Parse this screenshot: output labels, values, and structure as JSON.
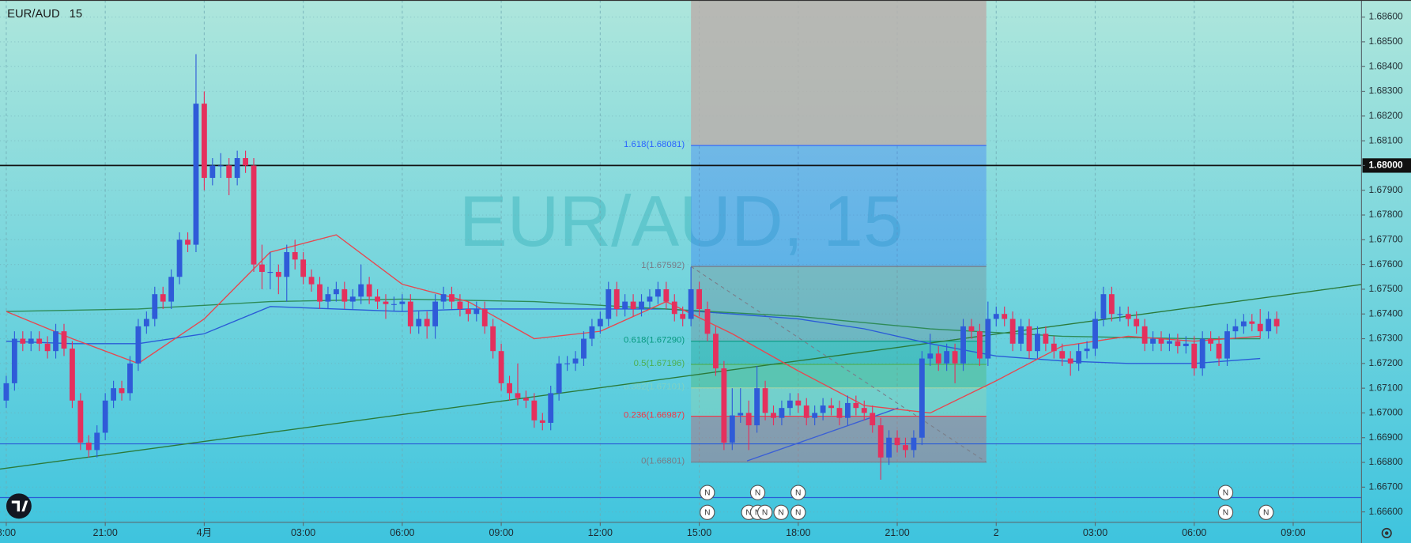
{
  "chart_data": {
    "type": "candlestick",
    "title": "EUR/AUD",
    "interval": "15",
    "watermark": "EUR/AUD, 15",
    "event_marker_label": "N",
    "up_color": "#2f5bd8",
    "down_color": "#e4305d",
    "grid": true,
    "xlim": [
      -0.19,
      41.07
    ],
    "ylim": [
      1.66558,
      1.68669
    ],
    "xticks": [
      {
        "value": 0,
        "label": "8:00"
      },
      {
        "value": 3,
        "label": "21:00"
      },
      {
        "value": 6,
        "label": "4月"
      },
      {
        "value": 9,
        "label": "03:00"
      },
      {
        "value": 12,
        "label": "06:00"
      },
      {
        "value": 15,
        "label": "09:00"
      },
      {
        "value": 18,
        "label": "12:00"
      },
      {
        "value": 21,
        "label": "15:00"
      },
      {
        "value": 24,
        "label": "18:00"
      },
      {
        "value": 27,
        "label": "21:00"
      },
      {
        "value": 30,
        "label": "2"
      },
      {
        "value": 33,
        "label": "03:00"
      },
      {
        "value": 36,
        "label": "06:00"
      },
      {
        "value": 39,
        "label": "09:00"
      }
    ],
    "yticks": [
      {
        "value": 1.666,
        "label": "1.66600"
      },
      {
        "value": 1.667,
        "label": "1.66700"
      },
      {
        "value": 1.668,
        "label": "1.66800"
      },
      {
        "value": 1.669,
        "label": "1.66900"
      },
      {
        "value": 1.67,
        "label": "1.67000"
      },
      {
        "value": 1.671,
        "label": "1.67100"
      },
      {
        "value": 1.672,
        "label": "1.67200"
      },
      {
        "value": 1.673,
        "label": "1.67300"
      },
      {
        "value": 1.674,
        "label": "1.67400"
      },
      {
        "value": 1.675,
        "label": "1.67500"
      },
      {
        "value": 1.676,
        "label": "1.67600"
      },
      {
        "value": 1.677,
        "label": "1.67700"
      },
      {
        "value": 1.678,
        "label": "1.67800"
      },
      {
        "value": 1.679,
        "label": "1.67900"
      },
      {
        "value": 1.68,
        "label": "1.68000"
      },
      {
        "value": 1.681,
        "label": "1.68100"
      },
      {
        "value": 1.682,
        "label": "1.68200"
      },
      {
        "value": 1.683,
        "label": "1.68300"
      },
      {
        "value": 1.684,
        "label": "1.68400"
      },
      {
        "value": 1.685,
        "label": "1.68500"
      },
      {
        "value": 1.686,
        "label": "1.68600"
      }
    ],
    "x": [
      0,
      0.25,
      0.5,
      0.75,
      1,
      1.25,
      1.5,
      1.75,
      2,
      2.25,
      2.5,
      2.75,
      3,
      3.25,
      3.5,
      3.75,
      4,
      4.25,
      4.5,
      4.75,
      5,
      5.25,
      5.5,
      5.75,
      6,
      6.25,
      6.5,
      6.75,
      7,
      7.25,
      7.5,
      7.75,
      8,
      8.25,
      8.5,
      8.75,
      9,
      9.25,
      9.5,
      9.75,
      10,
      10.25,
      10.5,
      10.75,
      11,
      11.25,
      11.5,
      11.75,
      12,
      12.25,
      12.5,
      12.75,
      13,
      13.25,
      13.5,
      13.75,
      14,
      14.25,
      14.5,
      14.75,
      15,
      15.25,
      15.5,
      15.75,
      16,
      16.25,
      16.5,
      16.75,
      17,
      17.25,
      17.5,
      17.75,
      18,
      18.25,
      18.5,
      18.75,
      19,
      19.25,
      19.5,
      19.75,
      20,
      20.25,
      20.5,
      20.75,
      21,
      21.25,
      21.5,
      21.75,
      22,
      22.25,
      22.5,
      22.75,
      23,
      23.25,
      23.5,
      23.75,
      24,
      24.25,
      24.5,
      24.75,
      25,
      25.25,
      25.5,
      25.75,
      26,
      26.25,
      26.5,
      26.75,
      27,
      27.25,
      27.5,
      27.75,
      28,
      28.25,
      28.5,
      28.75,
      29,
      29.25,
      29.5,
      29.75,
      30,
      30.25,
      30.5,
      30.75,
      31,
      31.25,
      31.5,
      31.75,
      32,
      32.25,
      32.5,
      32.75,
      33,
      33.25,
      33.5,
      33.75,
      34,
      34.25,
      34.5,
      34.75,
      35,
      35.25,
      35.5,
      35.75,
      36,
      36.25,
      36.5,
      36.75,
      37,
      37.25,
      37.5,
      37.75,
      38,
      38.25,
      38.5
    ],
    "open": [
      1.6705,
      1.6712,
      1.673,
      1.6728,
      1.673,
      1.6728,
      1.6725,
      1.6733,
      1.6726,
      1.6705,
      1.6688,
      1.6685,
      1.6692,
      1.6705,
      1.671,
      1.6708,
      1.672,
      1.6735,
      1.6738,
      1.6748,
      1.6745,
      1.6755,
      1.677,
      1.6768,
      1.6825,
      1.6795,
      1.68,
      1.68,
      1.6795,
      1.6803,
      1.68,
      1.676,
      1.6757,
      1.6757,
      1.6755,
      1.6765,
      1.6762,
      1.6755,
      1.6752,
      1.6745,
      1.6748,
      1.675,
      1.6745,
      1.6747,
      1.6752,
      1.6747,
      1.6745,
      1.6744,
      1.6744,
      1.6745,
      1.6735,
      1.6738,
      1.6735,
      1.6745,
      1.6748,
      1.6745,
      1.6742,
      1.674,
      1.6742,
      1.6735,
      1.6725,
      1.6712,
      1.6708,
      1.6706,
      1.6705,
      1.6697,
      1.6696,
      1.6708,
      1.672,
      1.672,
      1.6722,
      1.673,
      1.6735,
      1.6738,
      1.675,
      1.6742,
      1.6745,
      1.6742,
      1.6745,
      1.6747,
      1.675,
      1.6745,
      1.674,
      1.6738,
      1.675,
      1.6742,
      1.6732,
      1.6718,
      1.6688,
      1.6699,
      1.67,
      1.6695,
      1.671,
      1.67,
      1.6698,
      1.6702,
      1.6705,
      1.6703,
      1.6698,
      1.67,
      1.6703,
      1.6702,
      1.6698,
      1.6704,
      1.6702,
      1.67,
      1.6695,
      1.6682,
      1.669,
      1.6687,
      1.6685,
      1.669,
      1.6722,
      1.6724,
      1.672,
      1.6725,
      1.672,
      1.6735,
      1.6733,
      1.6722,
      1.6738,
      1.674,
      1.6738,
      1.6728,
      1.6735,
      1.6725,
      1.6732,
      1.6728,
      1.6725,
      1.6722,
      1.672,
      1.6725,
      1.6726,
      1.6738,
      1.6748,
      1.674,
      1.674,
      1.6738,
      1.6735,
      1.6728,
      1.673,
      1.6728,
      1.6729,
      1.6727,
      1.6728,
      1.6718,
      1.673,
      1.6728,
      1.6722,
      1.6733,
      1.6735,
      1.6737,
      1.6736,
      1.6733,
      1.6738
    ],
    "high": [
      1.6715,
      1.6733,
      1.6733,
      1.6733,
      1.6733,
      1.6731,
      1.6736,
      1.6736,
      1.6729,
      1.6708,
      1.6691,
      1.6695,
      1.6708,
      1.6713,
      1.6713,
      1.6723,
      1.6738,
      1.6741,
      1.6751,
      1.6751,
      1.6758,
      1.6773,
      1.6773,
      1.6845,
      1.683,
      1.6803,
      1.6805,
      1.6803,
      1.6806,
      1.6806,
      1.6803,
      1.6768,
      1.6765,
      1.676,
      1.6768,
      1.677,
      1.6765,
      1.6758,
      1.6755,
      1.6751,
      1.6753,
      1.6753,
      1.675,
      1.676,
      1.6755,
      1.675,
      1.6748,
      1.6747,
      1.6748,
      1.6748,
      1.6741,
      1.6741,
      1.6748,
      1.6751,
      1.6751,
      1.6748,
      1.6745,
      1.6745,
      1.6745,
      1.6738,
      1.6728,
      1.6715,
      1.672,
      1.6709,
      1.6708,
      1.67,
      1.6711,
      1.6723,
      1.6723,
      1.6725,
      1.6733,
      1.6738,
      1.6741,
      1.6753,
      1.6753,
      1.6748,
      1.6748,
      1.6748,
      1.675,
      1.6753,
      1.6753,
      1.6748,
      1.6743,
      1.6759,
      1.6753,
      1.6745,
      1.6735,
      1.6721,
      1.671,
      1.671,
      1.6705,
      1.6719,
      1.6713,
      1.6703,
      1.6705,
      1.6708,
      1.6708,
      1.6706,
      1.6703,
      1.6706,
      1.6706,
      1.6705,
      1.6707,
      1.6707,
      1.6705,
      1.6703,
      1.6698,
      1.6693,
      1.6693,
      1.669,
      1.6693,
      1.6725,
      1.6732,
      1.6727,
      1.6728,
      1.6728,
      1.6738,
      1.6738,
      1.6736,
      1.6745,
      1.6743,
      1.6743,
      1.6741,
      1.6738,
      1.6738,
      1.6735,
      1.6735,
      1.6731,
      1.6728,
      1.6725,
      1.6728,
      1.6729,
      1.6741,
      1.6751,
      1.6751,
      1.6743,
      1.6743,
      1.6741,
      1.6738,
      1.6733,
      1.6733,
      1.6732,
      1.6732,
      1.6731,
      1.6731,
      1.6733,
      1.6733,
      1.6731,
      1.6736,
      1.6738,
      1.674,
      1.674,
      1.6742,
      1.6741,
      1.6741
    ],
    "low": [
      1.6702,
      1.6709,
      1.6725,
      1.6725,
      1.6725,
      1.6722,
      1.6722,
      1.6723,
      1.6702,
      1.6685,
      1.6682,
      1.6682,
      1.6689,
      1.6702,
      1.6705,
      1.6705,
      1.6717,
      1.6732,
      1.6735,
      1.6742,
      1.6742,
      1.6752,
      1.6765,
      1.6765,
      1.679,
      1.6792,
      1.6795,
      1.6788,
      1.6792,
      1.6797,
      1.6757,
      1.675,
      1.675,
      1.6748,
      1.6745,
      1.6758,
      1.6752,
      1.6749,
      1.6742,
      1.6742,
      1.6745,
      1.6742,
      1.6742,
      1.6744,
      1.6744,
      1.6742,
      1.6738,
      1.6741,
      1.6741,
      1.6732,
      1.6732,
      1.673,
      1.673,
      1.6742,
      1.6742,
      1.6739,
      1.6737,
      1.6737,
      1.6732,
      1.6722,
      1.6709,
      1.6705,
      1.6703,
      1.6702,
      1.6694,
      1.6693,
      1.6693,
      1.6705,
      1.6717,
      1.6717,
      1.6719,
      1.6727,
      1.6732,
      1.6735,
      1.6739,
      1.6739,
      1.6739,
      1.6739,
      1.6742,
      1.6744,
      1.6742,
      1.6737,
      1.6735,
      1.6735,
      1.6739,
      1.6729,
      1.6715,
      1.6685,
      1.6685,
      1.6696,
      1.6685,
      1.6692,
      1.6697,
      1.6695,
      1.6695,
      1.6699,
      1.67,
      1.6695,
      1.6695,
      1.6697,
      1.6699,
      1.6695,
      1.6695,
      1.6699,
      1.6697,
      1.6692,
      1.6673,
      1.6679,
      1.6684,
      1.6682,
      1.6682,
      1.6687,
      1.6719,
      1.6717,
      1.6717,
      1.6712,
      1.6717,
      1.673,
      1.6719,
      1.6719,
      1.6735,
      1.6735,
      1.6725,
      1.6725,
      1.6722,
      1.6722,
      1.6725,
      1.6722,
      1.6719,
      1.6715,
      1.6717,
      1.6722,
      1.6723,
      1.6735,
      1.6737,
      1.6737,
      1.6735,
      1.6732,
      1.6725,
      1.6725,
      1.6725,
      1.6725,
      1.6724,
      1.6724,
      1.6715,
      1.6715,
      1.6725,
      1.6719,
      1.6719,
      1.673,
      1.6732,
      1.6733,
      1.673,
      1.673,
      1.6732
    ],
    "close": [
      1.6712,
      1.673,
      1.6728,
      1.673,
      1.6728,
      1.6725,
      1.6733,
      1.6726,
      1.6705,
      1.6688,
      1.6685,
      1.6692,
      1.6705,
      1.671,
      1.6708,
      1.672,
      1.6735,
      1.6738,
      1.6748,
      1.6745,
      1.6755,
      1.677,
      1.6768,
      1.6825,
      1.6795,
      1.68,
      1.68,
      1.6795,
      1.6803,
      1.68,
      1.676,
      1.6757,
      1.6757,
      1.6755,
      1.6765,
      1.6762,
      1.6755,
      1.6752,
      1.6745,
      1.6748,
      1.675,
      1.6745,
      1.6747,
      1.6752,
      1.6747,
      1.6745,
      1.6744,
      1.6744,
      1.6745,
      1.6735,
      1.6738,
      1.6735,
      1.6745,
      1.6748,
      1.6745,
      1.6742,
      1.674,
      1.6742,
      1.6735,
      1.6725,
      1.6712,
      1.6708,
      1.6706,
      1.6705,
      1.6697,
      1.6696,
      1.6708,
      1.672,
      1.672,
      1.6722,
      1.673,
      1.6735,
      1.6738,
      1.675,
      1.6742,
      1.6745,
      1.6742,
      1.6745,
      1.6747,
      1.675,
      1.6745,
      1.674,
      1.6738,
      1.675,
      1.6742,
      1.6732,
      1.6718,
      1.6688,
      1.6699,
      1.67,
      1.6695,
      1.671,
      1.67,
      1.6698,
      1.6702,
      1.6705,
      1.6703,
      1.6698,
      1.67,
      1.6703,
      1.6702,
      1.6698,
      1.6704,
      1.6702,
      1.67,
      1.6695,
      1.6682,
      1.669,
      1.6687,
      1.6685,
      1.669,
      1.6722,
      1.6724,
      1.672,
      1.6725,
      1.672,
      1.6735,
      1.6733,
      1.6722,
      1.6738,
      1.674,
      1.6738,
      1.6728,
      1.6735,
      1.6725,
      1.6732,
      1.6728,
      1.6725,
      1.6722,
      1.672,
      1.6725,
      1.6726,
      1.6738,
      1.6748,
      1.674,
      1.674,
      1.6738,
      1.6735,
      1.6728,
      1.673,
      1.6728,
      1.6729,
      1.6727,
      1.6728,
      1.6718,
      1.673,
      1.6728,
      1.6722,
      1.6733,
      1.6735,
      1.6737,
      1.6736,
      1.6733,
      1.6738,
      1.6735
    ],
    "moving_averages": [
      {
        "color": "#2a5bd7",
        "x": [
          0,
          2,
          4,
          6,
          8,
          10,
          12,
          14,
          16,
          18,
          20,
          22,
          24,
          26,
          28,
          30,
          32,
          34,
          36,
          38
        ],
        "values": [
          1.6729,
          1.6728,
          1.6728,
          1.6732,
          1.6743,
          1.6742,
          1.6741,
          1.6742,
          1.6742,
          1.6742,
          1.6742,
          1.674,
          1.6738,
          1.6734,
          1.6728,
          1.6723,
          1.6721,
          1.672,
          1.672,
          1.6722
        ]
      },
      {
        "color": "#2e8b57",
        "x": [
          0,
          4,
          8,
          12,
          16,
          20,
          24,
          28,
          32,
          36,
          38
        ],
        "values": [
          1.6741,
          1.6742,
          1.6745,
          1.6746,
          1.6745,
          1.6742,
          1.6739,
          1.6734,
          1.6731,
          1.673,
          1.673
        ]
      },
      {
        "color": "#e8474f",
        "x": [
          0,
          2,
          4,
          6,
          8,
          10,
          12,
          14,
          16,
          18,
          20,
          22,
          24,
          26,
          28,
          30,
          32,
          34,
          36,
          38
        ],
        "values": [
          1.6741,
          1.673,
          1.672,
          1.6738,
          1.6765,
          1.6772,
          1.6752,
          1.6745,
          1.673,
          1.6733,
          1.6745,
          1.6732,
          1.6717,
          1.6703,
          1.67,
          1.6713,
          1.6727,
          1.6731,
          1.6729,
          1.6731
        ]
      }
    ],
    "trend_lines": [
      {
        "color": "#2b7a3a",
        "x": [
          -0.19,
          41.07
        ],
        "y": [
          1.66773,
          1.67519
        ]
      },
      {
        "color": "#3a5fd6",
        "x": [
          22.45,
          27.03
        ],
        "y": [
          1.66806,
          1.6702
        ]
      }
    ],
    "horizontal_lines": [
      {
        "value": 1.68,
        "color": "#111111",
        "axis_highlight": true
      },
      {
        "value": 1.66875,
        "color": "#2a5bd7",
        "axis_highlight": false
      },
      {
        "value": 1.66658,
        "color": "#2a5bd7",
        "axis_highlight": false
      }
    ],
    "fibonacci": {
      "x": [
        20.75,
        29.7
      ],
      "levels": [
        {
          "value": 1.66801,
          "label": "0(1.66801)",
          "color": "#787b86"
        },
        {
          "value": 1.66987,
          "label": "0.236(1.66987)",
          "color": "#f23645"
        },
        {
          "value": 1.67101,
          "label": "0.382(1.67101)",
          "color": "#a5d6a7"
        },
        {
          "value": 1.67196,
          "label": "0.5(1.67196)",
          "color": "#4caf50"
        },
        {
          "value": 1.6729,
          "label": "0.618(1.67290)",
          "color": "#089981"
        },
        {
          "value": 1.67592,
          "label": "1(1.67592)",
          "color": "#787b86"
        },
        {
          "value": 1.68081,
          "label": "1.618(1.68081)",
          "color": "#2962ff"
        }
      ]
    }
  }
}
